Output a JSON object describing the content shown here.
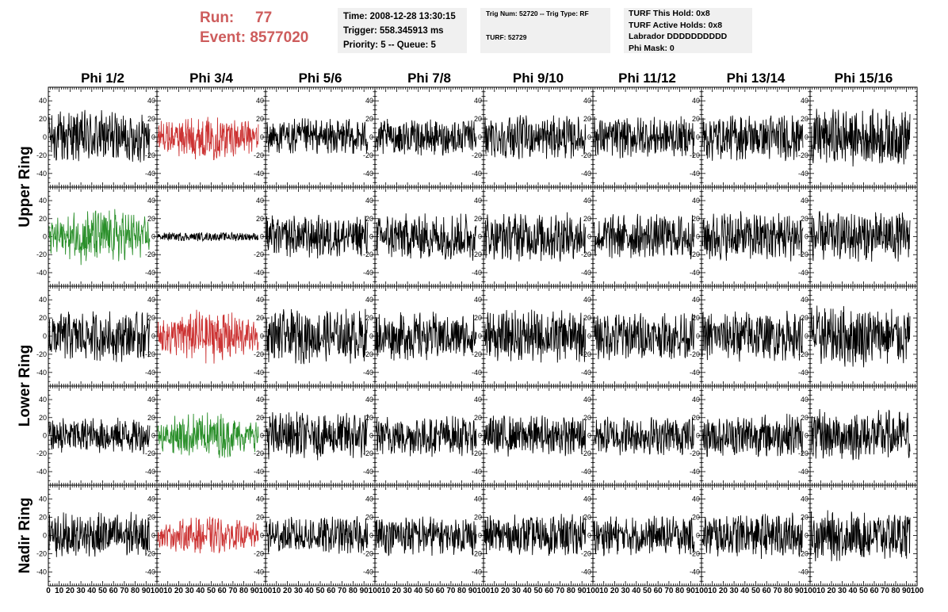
{
  "run": {
    "run_label": "Run:",
    "run_value": "77",
    "event_label": "Event:",
    "event_value": "8577020"
  },
  "info_time": {
    "line1": "Time: 2008-12-28 13:30:15",
    "line2": "Trigger: 558.345913 ms",
    "line3": "Priority: 5 -- Queue: 5"
  },
  "info_trig": {
    "line1": "Trig Num: 52720 -- Trig Type: RF",
    "line2": "TURF: 52729"
  },
  "info_turf": {
    "line1": "TURF This Hold: 0x8",
    "line2": "TURF Active Holds: 0x8",
    "line3": "Labrador DDDDDDDDDD",
    "line4": "Phi Mask: 0"
  },
  "colors": {
    "normal": "#000000",
    "triggered_red": "#cc3333",
    "triggered_green": "#2a8f2a",
    "info_bg": "#f0f0f0",
    "run_text": "#cd5c5c"
  },
  "chart_data": {
    "type": "line",
    "columns": [
      "Phi 1/2",
      "Phi 3/4",
      "Phi 5/6",
      "Phi 7/8",
      "Phi 9/10",
      "Phi 11/12",
      "Phi 13/14",
      "Phi 15/16"
    ],
    "ring_labels": [
      {
        "text": "Upper Ring",
        "rows": [
          0,
          1
        ]
      },
      {
        "text": "Lower Ring",
        "rows": [
          2,
          3
        ]
      },
      {
        "text": "Nadir Ring",
        "rows": [
          4,
          4
        ]
      }
    ],
    "xlim": [
      0,
      100
    ],
    "ylim": [
      -55,
      55
    ],
    "yticks": [
      -40,
      -20,
      0,
      20,
      40
    ],
    "xticks": [
      0,
      10,
      20,
      30,
      40,
      50,
      60,
      70,
      80,
      90,
      100
    ],
    "xtick_labels": [
      "0",
      "10",
      "20",
      "30",
      "40",
      "50",
      "60",
      "70",
      "80",
      "90",
      "100"
    ],
    "panel_colors": [
      [
        "normal",
        "red",
        "normal",
        "normal",
        "normal",
        "normal",
        "normal",
        "normal"
      ],
      [
        "green",
        "normal",
        "normal",
        "normal",
        "normal",
        "normal",
        "normal",
        "normal"
      ],
      [
        "normal",
        "red",
        "normal",
        "normal",
        "normal",
        "normal",
        "normal",
        "normal"
      ],
      [
        "normal",
        "green",
        "normal",
        "normal",
        "normal",
        "normal",
        "normal",
        "normal"
      ],
      [
        "normal",
        "red",
        "normal",
        "normal",
        "normal",
        "normal",
        "normal",
        "normal"
      ]
    ],
    "panel_amplitudes": [
      [
        25,
        22,
        17,
        17,
        20,
        19,
        22,
        26
      ],
      [
        27,
        4,
        20,
        22,
        23,
        21,
        23,
        23
      ],
      [
        23,
        25,
        25,
        22,
        24,
        22,
        23,
        28
      ],
      [
        17,
        22,
        22,
        19,
        19,
        18,
        20,
        24
      ],
      [
        21,
        17,
        17,
        18,
        19,
        18,
        21,
        23
      ]
    ],
    "samples_per_trace": 260
  }
}
